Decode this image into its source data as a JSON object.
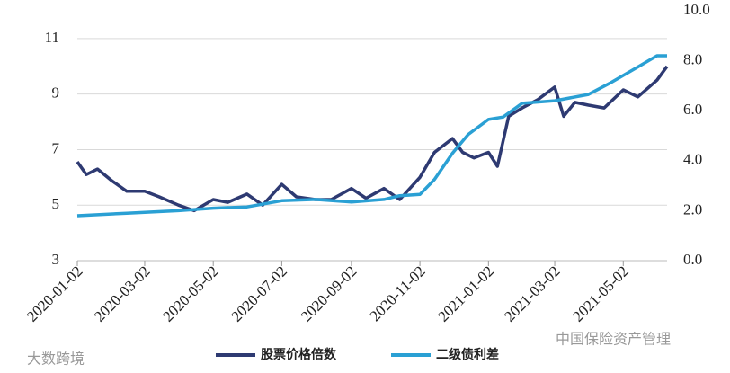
{
  "chart_data": {
    "type": "line",
    "series": [
      {
        "name": "股票价格倍数",
        "color": "#2e3a72",
        "axis": "y",
        "x": [
          "2020-01-02",
          "2020-01-10",
          "2020-01-20",
          "2020-02-01",
          "2020-02-15",
          "2020-03-02",
          "2020-03-15",
          "2020-04-01",
          "2020-04-15",
          "2020-05-02",
          "2020-05-15",
          "2020-06-01",
          "2020-06-15",
          "2020-07-02",
          "2020-07-15",
          "2020-08-01",
          "2020-08-15",
          "2020-09-02",
          "2020-09-15",
          "2020-10-01",
          "2020-10-15",
          "2020-11-02",
          "2020-11-15",
          "2020-12-01",
          "2020-12-10",
          "2020-12-20",
          "2021-01-02",
          "2021-01-10",
          "2021-01-20",
          "2021-02-01",
          "2021-02-15",
          "2021-03-02",
          "2021-03-10",
          "2021-03-20",
          "2021-04-01",
          "2021-04-15",
          "2021-05-02",
          "2021-05-15",
          "2021-06-01",
          "2021-06-10"
        ],
        "values": [
          6.56,
          6.1,
          6.3,
          5.9,
          5.5,
          5.5,
          5.3,
          5.0,
          4.8,
          5.2,
          5.1,
          5.4,
          5.0,
          5.75,
          5.3,
          5.2,
          5.2,
          5.6,
          5.25,
          5.6,
          5.2,
          6.0,
          6.9,
          7.4,
          6.9,
          6.7,
          6.9,
          6.4,
          8.2,
          8.5,
          8.8,
          9.25,
          8.2,
          8.7,
          8.6,
          8.5,
          9.15,
          8.9,
          9.5,
          10.0
        ]
      },
      {
        "name": "二级债利差",
        "color": "#2aa0d4",
        "axis": "y2",
        "x": [
          "2020-01-02",
          "2020-02-15",
          "2020-04-01",
          "2020-05-02",
          "2020-06-01",
          "2020-07-02",
          "2020-08-01",
          "2020-09-02",
          "2020-10-01",
          "2020-10-15",
          "2020-11-02",
          "2020-11-15",
          "2020-12-01",
          "2020-12-15",
          "2021-01-02",
          "2021-01-15",
          "2021-02-01",
          "2021-03-02",
          "2021-04-01",
          "2021-04-20",
          "2021-05-15",
          "2021-06-01",
          "2021-06-10"
        ],
        "values": [
          1.8,
          1.9,
          2.0,
          2.1,
          2.15,
          2.4,
          2.45,
          2.35,
          2.45,
          2.6,
          2.65,
          3.25,
          4.3,
          5.05,
          5.65,
          5.75,
          6.3,
          6.4,
          6.65,
          7.1,
          7.75,
          8.2,
          8.2
        ]
      }
    ],
    "xlim": [
      "2020-01-02",
      "2021-06-10"
    ],
    "xticks": [
      "2020-01-02",
      "2020-03-02",
      "2020-05-02",
      "2020-07-02",
      "2020-09-02",
      "2020-11-02",
      "2021-01-02",
      "2021-03-02",
      "2021-05-02"
    ],
    "ylim": [
      3,
      12
    ],
    "yticks": [
      3,
      5,
      7,
      9,
      11
    ],
    "y2lim": [
      0,
      10
    ],
    "y2ticks": [
      {
        "value": 0,
        "label": "0.0"
      },
      {
        "value": 2,
        "label": "2.0"
      },
      {
        "value": 4,
        "label": "4.0"
      },
      {
        "value": 6,
        "label": "6.0"
      },
      {
        "value": 8,
        "label": "8.0"
      },
      {
        "value": 10,
        "label": "10.0"
      }
    ],
    "grid": true,
    "legend": "bottom"
  },
  "watermarks": [
    "大数跨境",
    "中国保险资产管理"
  ]
}
